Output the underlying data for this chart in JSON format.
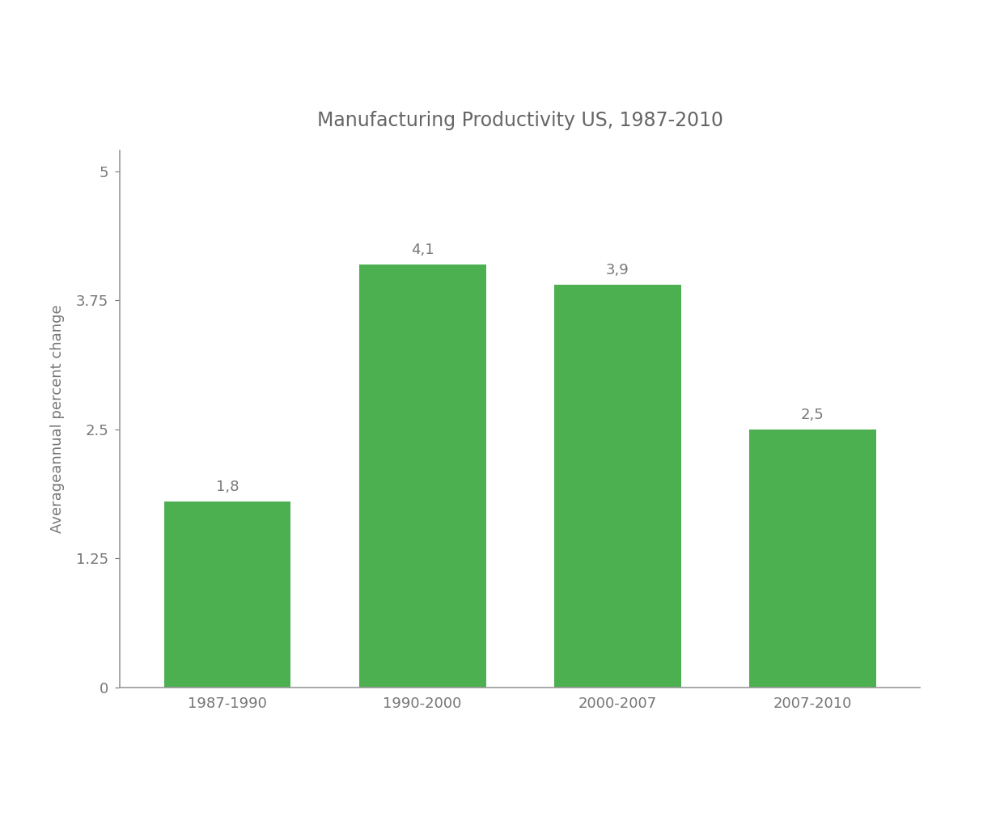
{
  "title": "Manufacturing Productivity US, 1987-2010",
  "categories": [
    "1987-1990",
    "1990-2000",
    "2000-2007",
    "2007-2010"
  ],
  "values": [
    1.8,
    4.1,
    3.9,
    2.5
  ],
  "bar_labels": [
    "1,8",
    "4,1",
    "3,9",
    "2,5"
  ],
  "bar_color": "#4caf50",
  "ylabel": "Averageannual percent change",
  "background_color": "#ffffff",
  "ylim": [
    0,
    5.2
  ],
  "yticks": [
    0,
    1.25,
    2.5,
    3.75,
    5
  ],
  "ytick_labels": [
    "0",
    "1.25",
    "2.5",
    "3.75",
    "5"
  ],
  "title_fontsize": 17,
  "label_fontsize": 13,
  "tick_fontsize": 13,
  "bar_label_fontsize": 13,
  "title_color": "#666666",
  "tick_color": "#777777",
  "ylabel_color": "#777777",
  "bar_label_color": "#777777",
  "spine_color": "#999999",
  "axis_line_color": "#999999"
}
